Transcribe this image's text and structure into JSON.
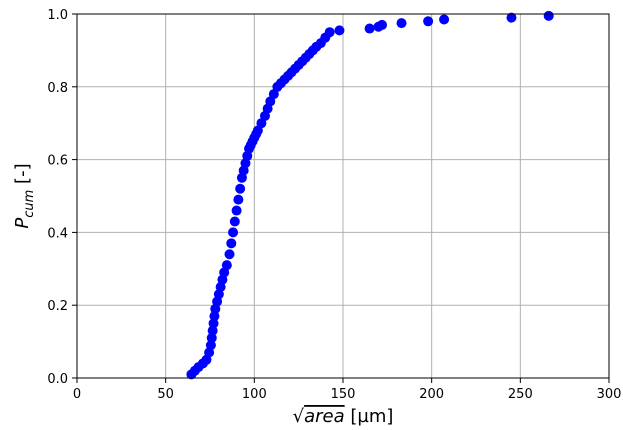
{
  "chart_data": {
    "type": "scatter",
    "xlabel": "√area [µm]",
    "xlabel_parts": {
      "radical": "√",
      "radicand": "area",
      "unit": " [µm]"
    },
    "ylabel": "Pcum [-]",
    "ylabel_parts": {
      "base": "P",
      "subscript": "cum",
      "unit": " [-]"
    },
    "xlim": [
      0,
      300
    ],
    "ylim": [
      0,
      1.0
    ],
    "xticks": [
      0,
      50,
      100,
      150,
      200,
      250,
      300
    ],
    "yticks": [
      0.0,
      0.2,
      0.4,
      0.6,
      0.8,
      1.0
    ],
    "xtick_labels": [
      "0",
      "50",
      "100",
      "150",
      "200",
      "250",
      "300"
    ],
    "ytick_labels": [
      "0.0",
      "0.2",
      "0.4",
      "0.6",
      "0.8",
      "1.0"
    ],
    "grid": true,
    "marker_color": "#0000ff",
    "series": [
      {
        "x": [
          64.5,
          66.5,
          68.5,
          71.0,
          73.0,
          74.5,
          75.5,
          76.0,
          76.5,
          77.0,
          77.5,
          78.0,
          79.0,
          80.0,
          81.0,
          82.0,
          83.0,
          84.5,
          86.0,
          87.0,
          88.0,
          89.0,
          90.0,
          91.0,
          92.0,
          93.0,
          94.0,
          95.0,
          96.0,
          97.0,
          98.0,
          99.0,
          100.0,
          101.0,
          102.0,
          104.0,
          106.0,
          107.5,
          109.0,
          111.0,
          113.0,
          115.0,
          117.0,
          119.0,
          121.0,
          123.0,
          125.0,
          127.0,
          129.0,
          131.0,
          133.0,
          135.0,
          137.5,
          140.0,
          142.5,
          148.0,
          165.0,
          170.0,
          172.0,
          183.0,
          198.0,
          207.0,
          245.0,
          266.0
        ],
        "y": [
          0.01,
          0.02,
          0.03,
          0.04,
          0.05,
          0.07,
          0.09,
          0.11,
          0.13,
          0.15,
          0.17,
          0.19,
          0.21,
          0.23,
          0.25,
          0.27,
          0.29,
          0.31,
          0.34,
          0.37,
          0.4,
          0.43,
          0.46,
          0.49,
          0.52,
          0.55,
          0.57,
          0.59,
          0.61,
          0.63,
          0.64,
          0.65,
          0.66,
          0.67,
          0.68,
          0.7,
          0.72,
          0.74,
          0.76,
          0.78,
          0.8,
          0.81,
          0.82,
          0.83,
          0.84,
          0.85,
          0.86,
          0.87,
          0.88,
          0.89,
          0.9,
          0.91,
          0.92,
          0.935,
          0.95,
          0.955,
          0.96,
          0.965,
          0.97,
          0.975,
          0.98,
          0.985,
          0.99,
          0.995
        ]
      }
    ]
  }
}
